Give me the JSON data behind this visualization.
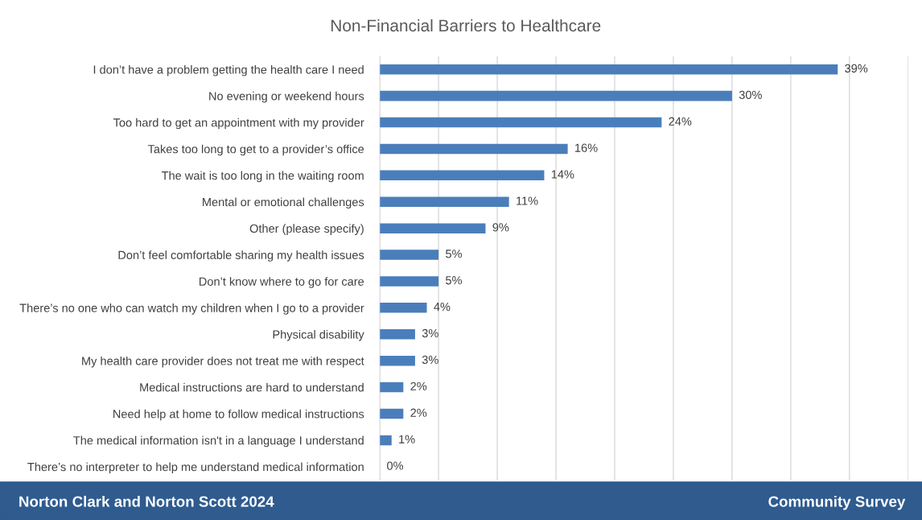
{
  "chart_data": {
    "type": "bar",
    "orientation": "horizontal",
    "title": "Non-Financial Barriers to Healthcare",
    "categories": [
      "I don’t have a problem getting the health care I need",
      "No evening or weekend hours",
      "Too hard to get an appointment with my provider",
      "Takes too long to get to a provider’s office",
      "The wait is too long in the waiting room",
      "Mental or emotional challenges",
      "Other (please specify)",
      "Don’t feel comfortable sharing my health issues",
      "Don’t know where to go for care",
      "There’s no one who can watch my children when I go to a provider",
      "Physical disability",
      "My health care provider does not treat me with respect",
      "Medical instructions are hard to understand",
      "Need help at home to follow medical instructions",
      "The medical information isn't in a language I understand",
      "There’s no interpreter to help me understand medical information"
    ],
    "values": [
      39,
      30,
      24,
      16,
      14,
      11,
      9,
      5,
      5,
      4,
      3,
      3,
      2,
      2,
      1,
      0
    ],
    "value_labels": [
      "39%",
      "30%",
      "24%",
      "16%",
      "14%",
      "11%",
      "9%",
      "5%",
      "5%",
      "4%",
      "3%",
      "3%",
      "2%",
      "2%",
      "1%",
      "0%"
    ],
    "color": "#4a7ebb",
    "xlim": [
      0,
      45
    ],
    "xticks": [
      {
        "value": 0,
        "label": null
      },
      {
        "value": 5,
        "label": null
      },
      {
        "value": 10,
        "label": null
      },
      {
        "value": 15,
        "label": null
      },
      {
        "value": 20,
        "label": null
      },
      {
        "value": 25,
        "label": null
      },
      {
        "value": 30,
        "label": null
      },
      {
        "value": 35,
        "label": null
      },
      {
        "value": 40,
        "label": null
      },
      {
        "value": 45,
        "label": null
      }
    ],
    "grid": "x",
    "legend": false,
    "annotations": [
      "Norton Clark and Norton Scott 2024",
      "Community Survey"
    ]
  }
}
